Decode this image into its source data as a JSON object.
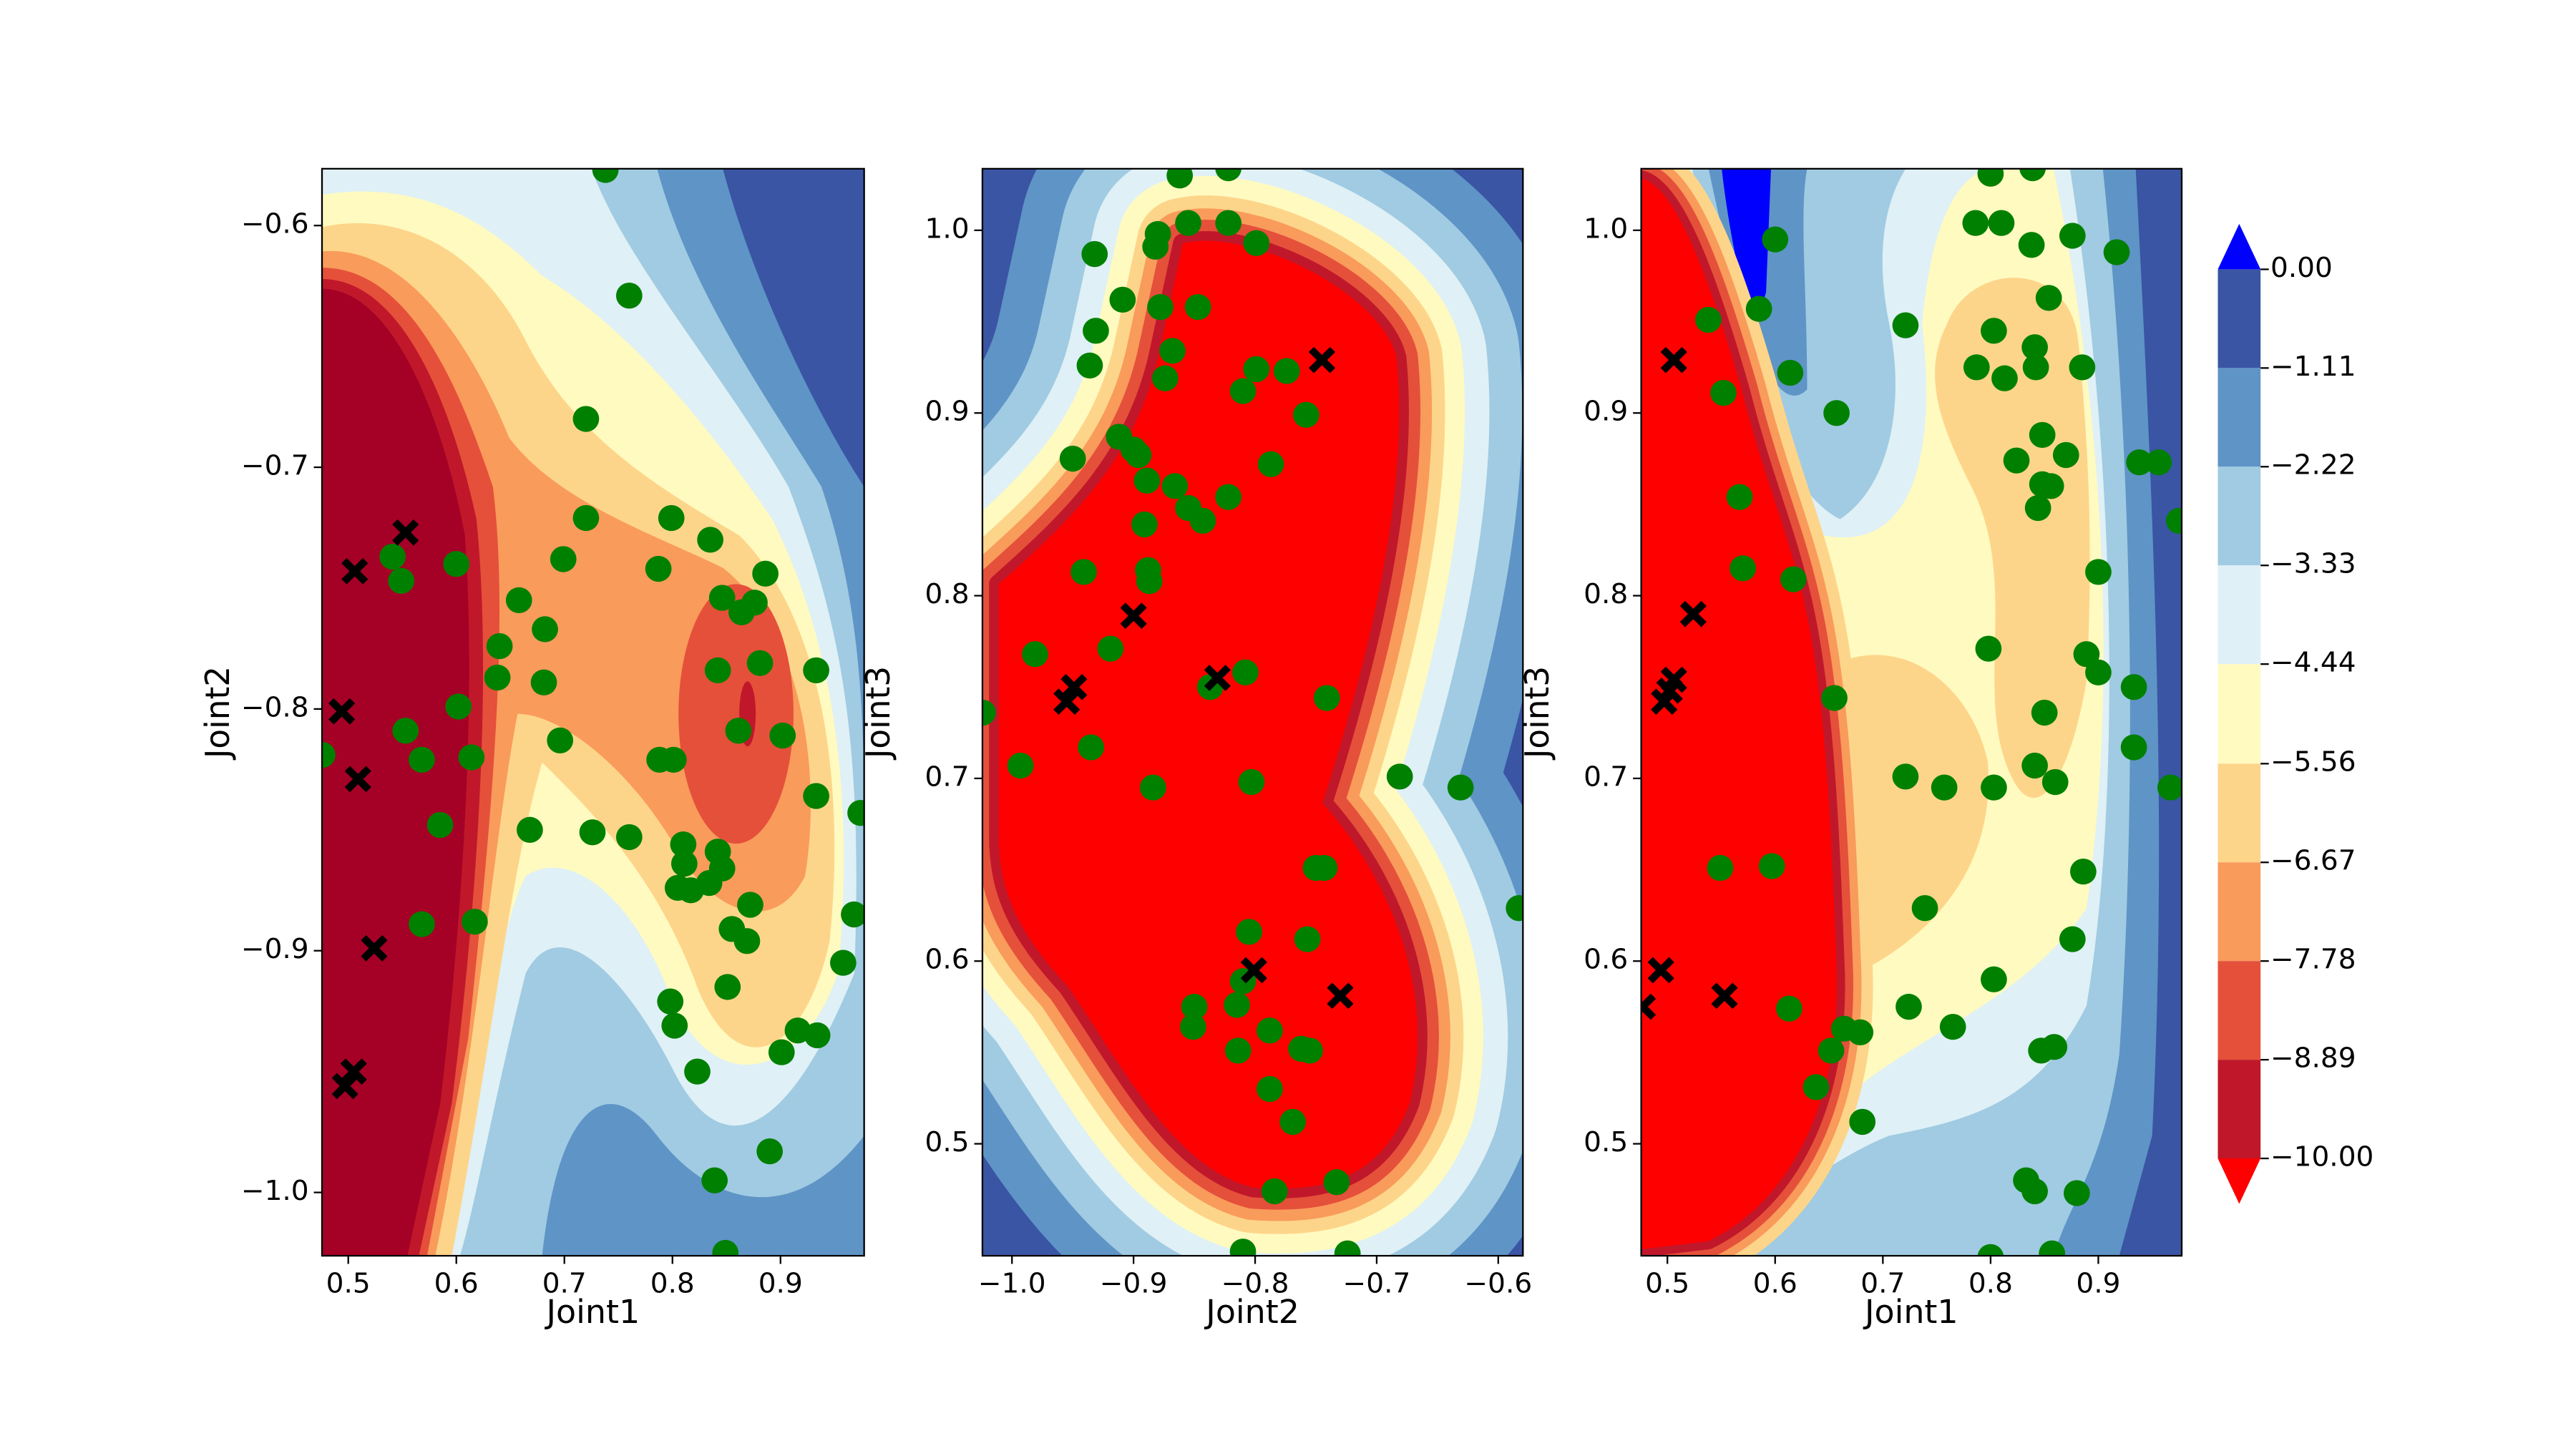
{
  "chart_data": [
    {
      "type": "contour",
      "xlabel": "Joint1",
      "ylabel": "Joint2",
      "core_color": "#a50026",
      "xlim": [
        0.4757,
        0.9774
      ],
      "ylim": [
        -1.0262,
        -0.5765
      ],
      "xticks": [
        0.5,
        0.6,
        0.7,
        0.8,
        0.9
      ],
      "yticks": [
        {
          "value": -1.0,
          "label": "−1.0"
        },
        {
          "value": -0.9,
          "label": "−0.9"
        },
        {
          "value": -0.8,
          "label": "−0.8"
        },
        {
          "value": -0.7,
          "label": "−0.7"
        },
        {
          "value": -0.6,
          "label": "−0.6"
        }
      ],
      "series": [
        {
          "color": "#008000",
          "marker": "o",
          "x": [
            0.738,
            0.76,
            0.72,
            0.72,
            0.699,
            0.541,
            0.549,
            0.6,
            0.64,
            0.658,
            0.682,
            0.638,
            0.602,
            0.553,
            0.568,
            0.614,
            0.585,
            0.568,
            0.617,
            0.681,
            0.696,
            0.668,
            0.726,
            0.76,
            0.787,
            0.799,
            0.835,
            0.788,
            0.801,
            0.846,
            0.864,
            0.876,
            0.886,
            0.842,
            0.881,
            0.861,
            0.902,
            0.933,
            0.933,
            0.81,
            0.811,
            0.805,
            0.817,
            0.834,
            0.842,
            0.846,
            0.855,
            0.869,
            0.851,
            0.872,
            0.798,
            0.802,
            0.823,
            0.839,
            0.89,
            0.901,
            0.916,
            0.934,
            0.958,
            0.968,
            0.974,
            0.849,
            0.476
          ],
          "y": [
            -0.577,
            -0.629,
            -0.68,
            -0.721,
            -0.738,
            -0.737,
            -0.747,
            -0.74,
            -0.774,
            -0.755,
            -0.767,
            -0.787,
            -0.799,
            -0.809,
            -0.821,
            -0.82,
            -0.848,
            -0.889,
            -0.888,
            -0.789,
            -0.813,
            -0.85,
            -0.851,
            -0.853,
            -0.742,
            -0.721,
            -0.73,
            -0.821,
            -0.821,
            -0.754,
            -0.76,
            -0.756,
            -0.744,
            -0.784,
            -0.781,
            -0.809,
            -0.811,
            -0.784,
            -0.836,
            -0.856,
            -0.864,
            -0.874,
            -0.875,
            -0.872,
            -0.859,
            -0.866,
            -0.891,
            -0.896,
            -0.915,
            -0.881,
            -0.921,
            -0.931,
            -0.95,
            -0.995,
            -0.983,
            -0.942,
            -0.933,
            -0.935,
            -0.905,
            -0.885,
            -0.843,
            -1.025,
            -0.819
          ]
        },
        {
          "color": "#000000",
          "marker": "X",
          "x": [
            0.506,
            0.553,
            0.494,
            0.509,
            0.524,
            0.505,
            0.497
          ],
          "y": [
            -0.743,
            -0.727,
            -0.801,
            -0.829,
            -0.899,
            -0.95,
            -0.956
          ]
        }
      ]
    },
    {
      "type": "contour",
      "xlabel": "Joint2",
      "ylabel": "Joint3",
      "core_color": "#ff0000",
      "xlim": [
        -1.0243,
        -0.5797
      ],
      "ylim": [
        0.4387,
        1.0337
      ],
      "xticks": [
        {
          "value": -1.0,
          "label": "−1.0"
        },
        {
          "value": -0.9,
          "label": "−0.9"
        },
        {
          "value": -0.8,
          "label": "−0.8"
        },
        {
          "value": -0.7,
          "label": "−0.7"
        },
        {
          "value": -0.6,
          "label": "−0.6"
        }
      ],
      "yticks": [
        0.5,
        0.6,
        0.7,
        0.8,
        0.9,
        {
          "value": 1.0,
          "label": "1.0"
        }
      ],
      "series": [
        {
          "color": "#008000",
          "marker": "o",
          "x": [
            -0.862,
            -0.822,
            -0.855,
            -0.822,
            -0.799,
            -0.88,
            -0.932,
            -0.882,
            -0.878,
            -0.847,
            -0.931,
            -0.909,
            -0.936,
            -0.868,
            -0.874,
            -0.799,
            -0.81,
            -0.774,
            -0.758,
            -0.787,
            -0.912,
            -0.9,
            -0.95,
            -0.896,
            -0.889,
            -0.822,
            -0.866,
            -0.855,
            -0.843,
            -0.891,
            -0.888,
            -0.941,
            -0.887,
            -0.919,
            -0.981,
            -0.808,
            -0.837,
            -0.935,
            -0.884,
            -0.993,
            -1.024,
            -0.803,
            -0.741,
            -0.681,
            -0.631,
            -0.583,
            -0.75,
            -0.743,
            -0.757,
            -0.81,
            -0.85,
            -0.851,
            -0.814,
            -0.788,
            -0.762,
            -0.755,
            -0.788,
            -0.769,
            -0.784,
            -0.733,
            -0.81,
            -0.724,
            -0.815,
            -0.805
          ],
          "y": [
            1.03,
            1.034,
            1.004,
            1.004,
            0.993,
            0.998,
            0.987,
            0.991,
            0.958,
            0.958,
            0.945,
            0.962,
            0.926,
            0.934,
            0.919,
            0.924,
            0.912,
            0.923,
            0.899,
            0.872,
            0.887,
            0.88,
            0.875,
            0.877,
            0.863,
            0.854,
            0.86,
            0.848,
            0.841,
            0.839,
            0.814,
            0.813,
            0.808,
            0.771,
            0.768,
            0.758,
            0.75,
            0.717,
            0.695,
            0.707,
            0.736,
            0.698,
            0.744,
            0.701,
            0.695,
            0.629,
            0.651,
            0.651,
            0.612,
            0.589,
            0.575,
            0.564,
            0.551,
            0.562,
            0.552,
            0.551,
            0.53,
            0.512,
            0.474,
            0.479,
            0.441,
            0.44,
            0.576,
            0.616
          ]
        },
        {
          "color": "#000000",
          "marker": "X",
          "x": [
            -0.745,
            -0.949,
            -0.955,
            -0.9,
            -0.831,
            -0.801,
            -0.73
          ],
          "y": [
            0.929,
            0.75,
            0.742,
            0.789,
            0.755,
            0.595,
            0.581
          ]
        }
      ]
    },
    {
      "type": "contour",
      "xlabel": "Joint1",
      "ylabel": "Joint3",
      "core_color": "#ff0000",
      "xlim": [
        0.4757,
        0.9774
      ],
      "ylim": [
        0.4387,
        1.0337
      ],
      "xticks": [
        0.5,
        0.6,
        0.7,
        0.8,
        0.9
      ],
      "yticks": [
        0.5,
        0.6,
        0.7,
        0.8,
        0.9,
        {
          "value": 1.0,
          "label": "1.0"
        }
      ],
      "series": [
        {
          "color": "#008000",
          "marker": "o",
          "x": [
            0.538,
            0.552,
            0.614,
            0.567,
            0.57,
            0.617,
            0.657,
            0.6,
            0.585,
            0.721,
            0.786,
            0.81,
            0.8,
            0.839,
            0.838,
            0.854,
            0.876,
            0.917,
            0.885,
            0.787,
            0.803,
            0.813,
            0.841,
            0.842,
            0.848,
            0.87,
            0.824,
            0.848,
            0.856,
            0.844,
            0.938,
            0.956,
            0.975,
            0.9,
            0.798,
            0.889,
            0.9,
            0.933,
            0.85,
            0.841,
            0.86,
            0.933,
            0.967,
            0.655,
            0.721,
            0.757,
            0.803,
            0.739,
            0.549,
            0.597,
            0.724,
            0.803,
            0.876,
            0.886,
            0.847,
            0.859,
            0.765,
            0.613,
            0.664,
            0.679,
            0.652,
            0.638,
            0.681,
            0.833,
            0.841,
            0.88,
            0.8,
            0.857
          ],
          "y": [
            0.951,
            0.911,
            0.922,
            0.854,
            0.815,
            0.809,
            0.9,
            0.995,
            0.957,
            0.948,
            1.004,
            1.004,
            1.031,
            1.034,
            0.992,
            0.963,
            0.997,
            0.988,
            0.925,
            0.925,
            0.945,
            0.919,
            0.936,
            0.925,
            0.888,
            0.877,
            0.874,
            0.861,
            0.86,
            0.848,
            0.873,
            0.873,
            0.841,
            0.813,
            0.771,
            0.768,
            0.758,
            0.75,
            0.736,
            0.707,
            0.698,
            0.717,
            0.695,
            0.744,
            0.701,
            0.695,
            0.695,
            0.629,
            0.651,
            0.652,
            0.575,
            0.59,
            0.612,
            0.649,
            0.551,
            0.553,
            0.564,
            0.574,
            0.563,
            0.561,
            0.551,
            0.531,
            0.512,
            0.48,
            0.474,
            0.473,
            0.438,
            0.44
          ]
        },
        {
          "color": "#000000",
          "marker": "X",
          "x": [
            0.506,
            0.524,
            0.506,
            0.502,
            0.497,
            0.494,
            0.553,
            0.477
          ],
          "y": [
            0.929,
            0.79,
            0.754,
            0.748,
            0.742,
            0.595,
            0.581,
            0.575
          ]
        }
      ]
    },
    {
      "type": "colorbar",
      "ylim": [
        -10,
        0
      ],
      "ticks": [
        {
          "value": 0,
          "label": "0.00"
        },
        {
          "value": -1.11,
          "label": "−1.11"
        },
        {
          "value": -2.22,
          "label": "−2.22"
        },
        {
          "value": -3.33,
          "label": "−3.33"
        },
        {
          "value": -4.44,
          "label": "−4.44"
        },
        {
          "value": -5.56,
          "label": "−5.56"
        },
        {
          "value": -6.67,
          "label": "−6.67"
        },
        {
          "value": -7.78,
          "label": "−7.78"
        },
        {
          "value": -8.89,
          "label": "−8.89"
        },
        {
          "value": -10,
          "label": "−10.00"
        }
      ],
      "colors": [
        "#3a55a4",
        "#5f94c6",
        "#a0cbe2",
        "#dff0f6",
        "#fffac0",
        "#fdd58a",
        "#f99b5b",
        "#e5503a",
        "#c0182a"
      ],
      "over_color": "#0000ff",
      "under_color": "#ff0000"
    }
  ]
}
